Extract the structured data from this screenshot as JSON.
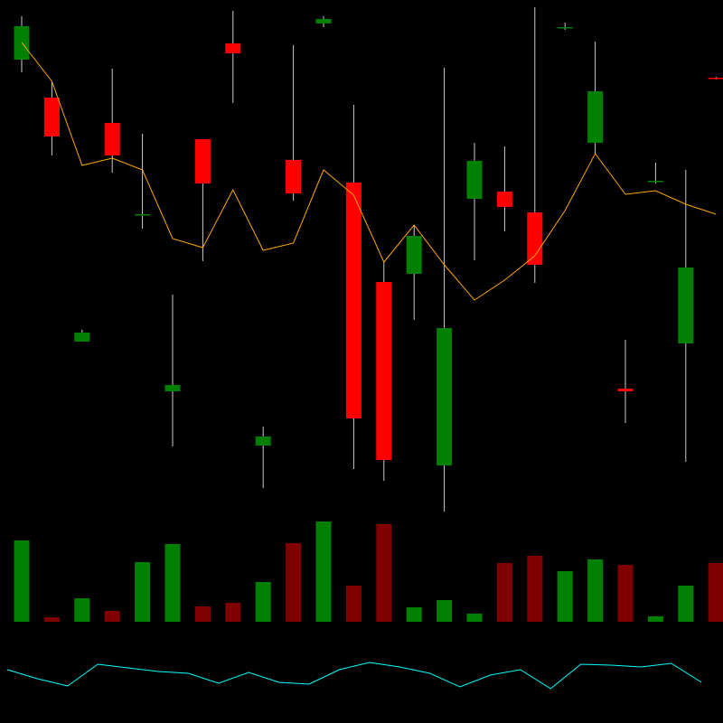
{
  "chart_data": [
    {
      "type": "candlestick",
      "open": [
        734,
        692,
        422,
        664,
        562,
        367,
        646,
        752,
        307,
        623,
        774,
        598,
        488,
        497,
        285,
        580,
        588,
        565,
        769,
        642,
        370,
        599,
        420,
        714
      ],
      "high": [
        782,
        710,
        435,
        724,
        652,
        474,
        646,
        788,
        328,
        750,
        782,
        684,
        510,
        550,
        725,
        642,
        638,
        792,
        775,
        754,
        424,
        620,
        612,
        715
      ],
      "low": [
        720,
        628,
        422,
        609,
        547,
        306,
        511,
        686,
        260,
        578,
        770,
        281,
        268,
        446,
        234,
        512,
        544,
        487,
        767,
        630,
        332,
        597,
        289,
        712
      ],
      "close": [
        771,
        649,
        432,
        628,
        563,
        374,
        597,
        741,
        317,
        586,
        779,
        337,
        291,
        539,
        437,
        622,
        571,
        507,
        770,
        699,
        367,
        600,
        504,
        713
      ],
      "up_color": "#008000",
      "down_color": "#ff0000",
      "wick_color": "#cccccc",
      "overlay": {
        "color": "#ffa500",
        "values": [
          753,
          710,
          617,
          625,
          612,
          536,
          526,
          590,
          523,
          531,
          612,
          584,
          510,
          551,
          507,
          468,
          490,
          517,
          567,
          630,
          585,
          589,
          574,
          563
        ]
      },
      "ylim": [
        0,
        800
      ]
    },
    {
      "type": "bar",
      "values": [
        90,
        5,
        26,
        12,
        66,
        86,
        17,
        21,
        44,
        87,
        111,
        40,
        108,
        16,
        24,
        9,
        65,
        73,
        56,
        69,
        63,
        6,
        40,
        65
      ],
      "colors": [
        "#008000",
        "#800000",
        "#008000",
        "#800000",
        "#008000",
        "#008000",
        "#800000",
        "#800000",
        "#008000",
        "#800000",
        "#008000",
        "#800000",
        "#800000",
        "#008000",
        "#008000",
        "#008000",
        "#800000",
        "#800000",
        "#008000",
        "#008000",
        "#800000",
        "#008000",
        "#008000",
        "#800000"
      ],
      "ylim": [
        0,
        688
      ]
    },
    {
      "type": "line",
      "color": "#00ffff",
      "values": [
        59,
        49,
        41,
        65,
        61,
        57,
        55,
        44,
        56,
        45,
        43,
        59,
        67,
        62,
        55,
        40,
        53,
        59,
        38,
        65,
        64,
        62,
        66,
        45
      ],
      "ylim": [
        0,
        800
      ]
    }
  ]
}
